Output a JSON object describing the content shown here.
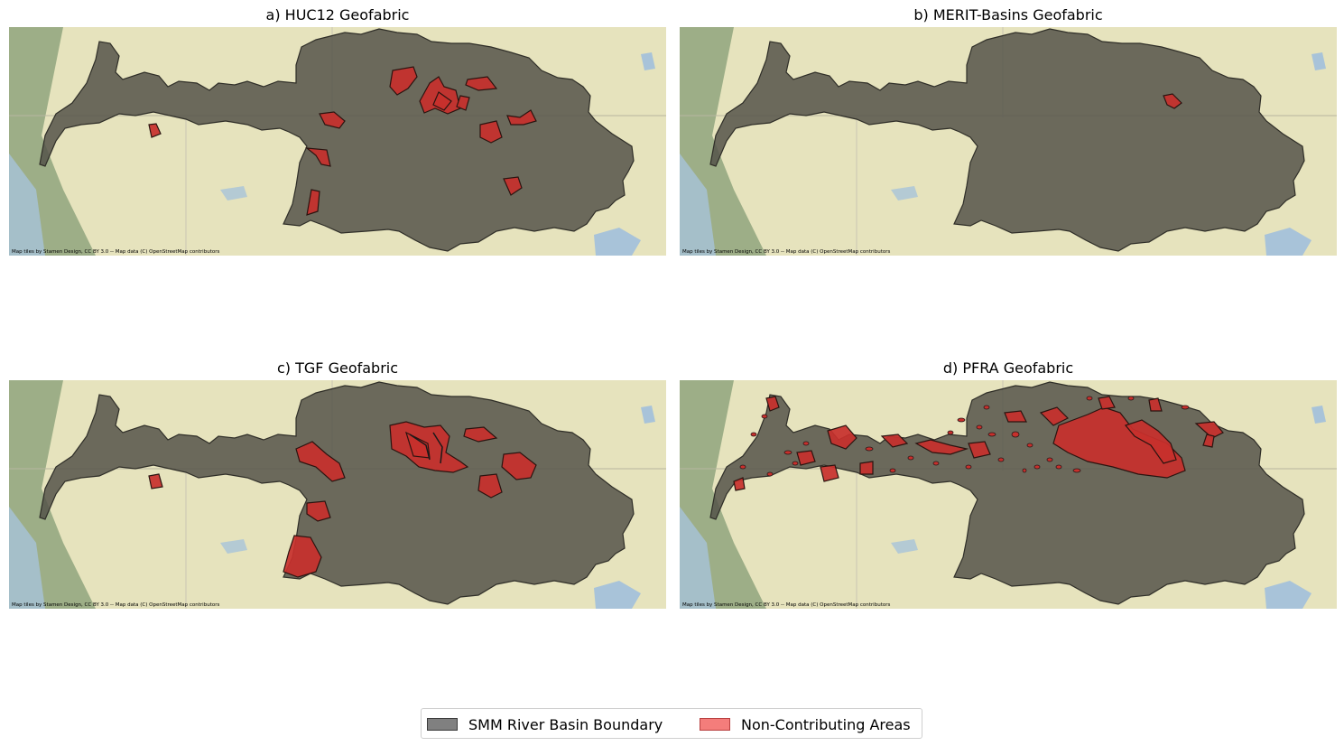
{
  "panels": [
    {
      "id": "a",
      "title": "a) HUC12 Geofabric",
      "credit": "Map tiles by Stamen Design, CC BY 3.0 -- Map data (C) OpenStreetMap contributors"
    },
    {
      "id": "b",
      "title": "b) MERIT-Basins Geofabric",
      "credit": "Map tiles by Stamen Design, CC BY 3.0 -- Map data (C) OpenStreetMap contributors"
    },
    {
      "id": "c",
      "title": "c) TGF Geofabric",
      "credit": "Map tiles by Stamen Design, CC BY 3.0 -- Map data (C) OpenStreetMap contributors"
    },
    {
      "id": "d",
      "title": "d) PFRA Geofabric",
      "credit": "Map tiles by Stamen Design, CC BY 3.0 -- Map data (C) OpenStreetMap contributors"
    }
  ],
  "legend": {
    "basin_label": "SMM River Basin Boundary",
    "noncontrib_label": "Non-Contributing Areas"
  },
  "colors": {
    "basin_fill": "#55534a",
    "noncontrib_fill": "#c8302c",
    "land": "#e6e3bd",
    "mountains": "#8fa47e",
    "water": "#a8c3d9"
  }
}
